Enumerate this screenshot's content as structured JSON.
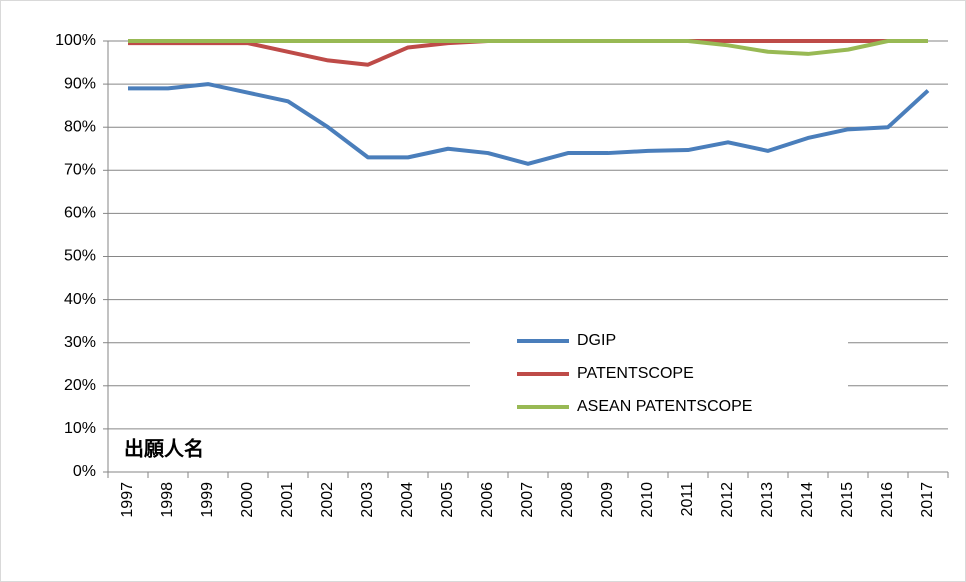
{
  "chart_data": {
    "type": "line",
    "annotation": "出願人名",
    "categories": [
      "1997",
      "1998",
      "1999",
      "2000",
      "2001",
      "2002",
      "2003",
      "2004",
      "2005",
      "2006",
      "2007",
      "2008",
      "2009",
      "2010",
      "2011",
      "2012",
      "2013",
      "2014",
      "2015",
      "2016",
      "2017"
    ],
    "series": [
      {
        "name": "DGIP",
        "color": "#4a7ebb",
        "values": [
          89,
          89,
          90,
          88,
          86,
          80,
          73,
          73,
          75,
          74,
          71.5,
          74,
          74,
          74.5,
          74.7,
          76.5,
          74.5,
          77.5,
          79.5,
          80,
          88.5
        ]
      },
      {
        "name": "PATENTSCOPE",
        "color": "#be4b48",
        "values": [
          99.5,
          99.5,
          99.5,
          99.5,
          97.5,
          95.5,
          94.5,
          98.5,
          99.5,
          100,
          100,
          100,
          100,
          100,
          100,
          100,
          100,
          100,
          100,
          100,
          100
        ]
      },
      {
        "name": "ASEAN PATENTSCOPE",
        "color": "#98b954",
        "values": [
          100,
          100,
          100,
          100,
          100,
          100,
          100,
          100,
          100,
          100,
          100,
          100,
          100,
          100,
          100,
          99,
          97.5,
          97,
          98,
          100,
          100
        ]
      }
    ],
    "ylim": [
      0,
      100
    ],
    "yticks": [
      {
        "value": 0,
        "label": "0%"
      },
      {
        "value": 10,
        "label": "10%"
      },
      {
        "value": 20,
        "label": "20%"
      },
      {
        "value": 30,
        "label": "30%"
      },
      {
        "value": 40,
        "label": "40%"
      },
      {
        "value": 50,
        "label": "50%"
      },
      {
        "value": 60,
        "label": "60%"
      },
      {
        "value": 70,
        "label": "70%"
      },
      {
        "value": 80,
        "label": "80%"
      },
      {
        "value": 90,
        "label": "90%"
      },
      {
        "value": 100,
        "label": "100%"
      }
    ],
    "grid": true
  }
}
